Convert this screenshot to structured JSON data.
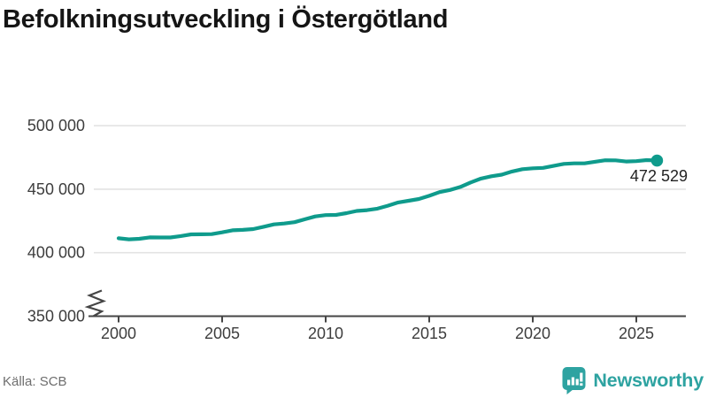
{
  "title": "Befolkningsutveckling i Östergötland",
  "source": "Källa: SCB",
  "branding": {
    "name": "Newsworthy",
    "color": "#2ea3a1"
  },
  "chart_data": {
    "type": "line",
    "title": "Befolkningsutveckling i Östergötland",
    "x": [
      2000,
      2001,
      2002,
      2003,
      2004,
      2005,
      2006,
      2007,
      2008,
      2009,
      2010,
      2011,
      2012,
      2013,
      2014,
      2015,
      2016,
      2017,
      2018,
      2019,
      2020,
      2021,
      2022,
      2023,
      2024,
      2025,
      2026
    ],
    "values": [
      411345,
      410900,
      412000,
      413100,
      414500,
      416000,
      418000,
      420400,
      423000,
      426300,
      429600,
      431100,
      433500,
      437000,
      440900,
      444800,
      449400,
      455300,
      460200,
      463900,
      466400,
      468300,
      470300,
      471600,
      472700,
      472100,
      472529
    ],
    "end_value": 472529,
    "end_label": "472 529",
    "xticks": [
      2000,
      2005,
      2010,
      2015,
      2020,
      2025
    ],
    "xtick_labels": [
      "2000",
      "2005",
      "2010",
      "2015",
      "2020",
      "2025"
    ],
    "yticks": [
      350000,
      400000,
      450000,
      500000
    ],
    "ytick_labels": [
      "350 000",
      "400 000",
      "450 000",
      "500 000"
    ],
    "xlim": [
      2000,
      2027.4
    ],
    "ylim": [
      350000,
      505000
    ],
    "y_axis_break": true,
    "grid": "horizontal",
    "legend": "none",
    "colors": {
      "line": "#0f9b8c",
      "marker": "#0f9b8c",
      "grid": "#e3e3e3",
      "axis": "#454545",
      "tick_text": "#3d3d3d",
      "end_label_text": "#222222",
      "title_text": "#151515",
      "source_text": "#6e6e6e"
    }
  }
}
